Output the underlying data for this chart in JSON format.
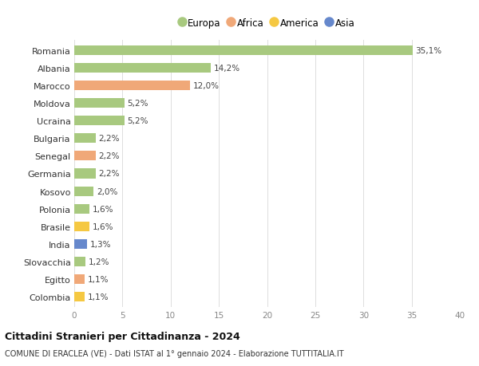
{
  "countries": [
    "Romania",
    "Albania",
    "Marocco",
    "Moldova",
    "Ucraina",
    "Bulgaria",
    "Senegal",
    "Germania",
    "Kosovo",
    "Polonia",
    "Brasile",
    "India",
    "Slovacchia",
    "Egitto",
    "Colombia"
  ],
  "values": [
    35.1,
    14.2,
    12.0,
    5.2,
    5.2,
    2.2,
    2.2,
    2.2,
    2.0,
    1.6,
    1.6,
    1.3,
    1.2,
    1.1,
    1.1
  ],
  "labels": [
    "35,1%",
    "14,2%",
    "12,0%",
    "5,2%",
    "5,2%",
    "2,2%",
    "2,2%",
    "2,2%",
    "2,0%",
    "1,6%",
    "1,6%",
    "1,3%",
    "1,2%",
    "1,1%",
    "1,1%"
  ],
  "colors": [
    "#a8c97f",
    "#a8c97f",
    "#f0a878",
    "#a8c97f",
    "#a8c97f",
    "#a8c97f",
    "#f0a878",
    "#a8c97f",
    "#a8c97f",
    "#a8c97f",
    "#f5c842",
    "#6688cc",
    "#a8c97f",
    "#f0a878",
    "#f5c842"
  ],
  "legend_labels": [
    "Europa",
    "Africa",
    "America",
    "Asia"
  ],
  "legend_colors": [
    "#a8c97f",
    "#f0a878",
    "#f5c842",
    "#6688cc"
  ],
  "title": "Cittadini Stranieri per Cittadinanza - 2024",
  "subtitle": "COMUNE DI ERACLEA (VE) - Dati ISTAT al 1° gennaio 2024 - Elaborazione TUTTITALIA.IT",
  "xlim": [
    0,
    40
  ],
  "xticks": [
    0,
    5,
    10,
    15,
    20,
    25,
    30,
    35,
    40
  ],
  "bg_color": "#ffffff",
  "grid_color": "#dddddd",
  "bar_height": 0.55
}
